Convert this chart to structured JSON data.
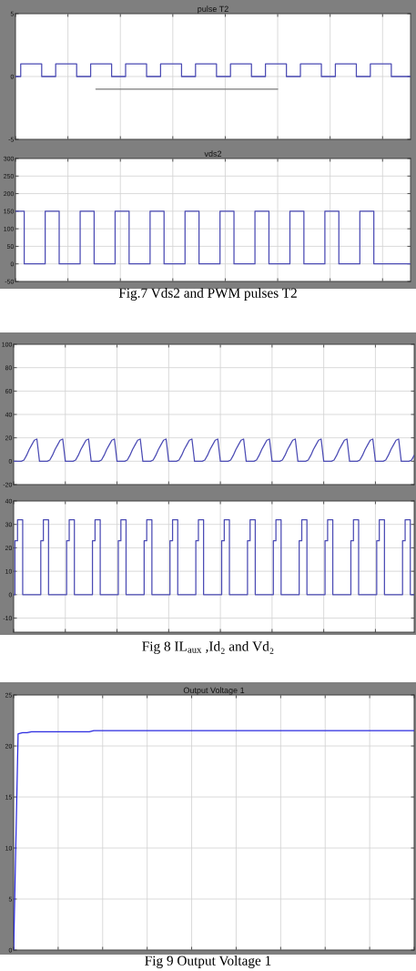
{
  "chart_data": [
    {
      "type": "step",
      "title": "pulse T2",
      "categories": [
        null,
        null,
        null,
        null,
        null,
        null,
        null,
        null,
        null,
        null,
        null,
        null,
        null,
        null,
        null,
        null,
        null,
        null,
        null,
        null,
        null,
        null,
        null,
        null,
        null,
        null,
        null,
        null,
        null,
        null,
        null,
        null,
        null,
        null,
        null,
        null,
        null,
        null,
        null,
        null,
        null,
        null,
        null,
        null,
        null,
        null,
        null,
        null,
        null,
        null,
        null,
        null,
        null,
        null,
        null,
        null,
        null,
        null,
        null,
        null,
        null,
        null,
        null,
        null,
        null,
        null,
        null,
        null,
        null,
        null,
        null,
        null,
        null,
        null,
        null,
        null,
        null,
        null,
        null,
        null,
        null,
        null,
        null,
        null,
        null,
        null,
        null,
        null,
        null,
        null,
        null,
        null,
        null,
        null,
        null,
        null,
        null,
        null,
        null,
        null,
        null,
        null,
        null,
        null,
        null,
        null,
        null,
        null,
        null,
        null,
        null,
        null,
        null,
        null
      ],
      "series": [
        {
          "color": "#4b4bb4",
          "values": [
            0,
            0,
            1,
            1,
            1,
            1,
            1,
            1,
            0,
            0,
            0,
            0,
            1,
            1,
            1,
            1,
            1,
            1,
            0,
            0,
            0,
            0,
            1,
            1,
            1,
            1,
            1,
            1,
            0,
            0,
            0,
            0,
            1,
            1,
            1,
            1,
            1,
            1,
            0,
            0,
            0,
            0,
            1,
            1,
            1,
            1,
            1,
            1,
            0,
            0,
            0,
            0,
            1,
            1,
            1,
            1,
            1,
            1,
            0,
            0,
            0,
            0,
            1,
            1,
            1,
            1,
            1,
            1,
            0,
            0,
            0,
            0,
            1,
            1,
            1,
            1,
            1,
            1,
            0,
            0,
            0,
            0,
            1,
            1,
            1,
            1,
            1,
            1,
            0,
            0,
            0,
            0,
            1,
            1,
            1,
            1,
            1,
            1,
            0,
            0,
            0,
            0,
            1,
            1,
            1,
            1,
            1,
            1,
            0,
            0,
            0,
            0,
            0,
            0
          ]
        },
        {
          "type": "line",
          "color": "#7a7a7a",
          "values": [
            null,
            null,
            null,
            null,
            null,
            null,
            null,
            null,
            null,
            null,
            null,
            null,
            null,
            null,
            null,
            null,
            null,
            null,
            null,
            null,
            null,
            null,
            null,
            -1,
            -1,
            -1,
            -1,
            -1,
            -1,
            -1,
            -1,
            -1,
            -1,
            -1,
            -1,
            -1,
            -1,
            -1,
            -1,
            -1,
            -1,
            -1,
            -1,
            -1,
            -1,
            -1,
            -1,
            -1,
            -1,
            -1,
            -1,
            -1,
            -1,
            -1,
            -1,
            -1,
            -1,
            -1,
            -1,
            -1,
            -1,
            -1,
            -1,
            -1,
            -1,
            -1,
            -1,
            -1,
            -1,
            -1,
            -1,
            -1,
            -1,
            -1,
            -1,
            -1,
            null,
            null,
            null,
            null,
            null,
            null,
            null,
            null,
            null,
            null,
            null,
            null,
            null,
            null,
            null,
            null,
            null,
            null,
            null,
            null,
            null,
            null,
            null,
            null,
            null,
            null,
            null,
            null,
            null,
            null,
            null,
            null,
            null,
            null,
            null,
            null,
            null,
            null
          ]
        }
      ],
      "ylim": [
        -5,
        5
      ],
      "yticks": [
        -5,
        0,
        5
      ],
      "grid": true,
      "tick_labels": "y"
    },
    {
      "type": "step",
      "title": "vds2",
      "categories": [
        null,
        null,
        null,
        null,
        null,
        null,
        null,
        null,
        null,
        null,
        null,
        null,
        null,
        null,
        null,
        null,
        null,
        null,
        null,
        null,
        null,
        null,
        null,
        null,
        null,
        null,
        null,
        null,
        null,
        null,
        null,
        null,
        null,
        null,
        null,
        null,
        null,
        null,
        null,
        null,
        null,
        null,
        null,
        null,
        null,
        null,
        null,
        null,
        null,
        null,
        null,
        null,
        null,
        null,
        null,
        null,
        null,
        null,
        null,
        null,
        null,
        null,
        null,
        null,
        null,
        null,
        null,
        null,
        null,
        null,
        null,
        null,
        null,
        null,
        null,
        null,
        null,
        null,
        null,
        null,
        null,
        null,
        null,
        null,
        null,
        null,
        null,
        null,
        null,
        null,
        null,
        null,
        null,
        null,
        null,
        null,
        null,
        null,
        null,
        null,
        null,
        null,
        null,
        null,
        null,
        null,
        null,
        null,
        null,
        null,
        null,
        null,
        null,
        null
      ],
      "series": [
        {
          "color": "#4b4bb4",
          "values": [
            150,
            150,
            150,
            0,
            0,
            0,
            0,
            0,
            0,
            150,
            150,
            150,
            150,
            0,
            0,
            0,
            0,
            0,
            0,
            150,
            150,
            150,
            150,
            0,
            0,
            0,
            0,
            0,
            0,
            150,
            150,
            150,
            150,
            0,
            0,
            0,
            0,
            0,
            0,
            150,
            150,
            150,
            150,
            0,
            0,
            0,
            0,
            0,
            0,
            150,
            150,
            150,
            150,
            0,
            0,
            0,
            0,
            0,
            0,
            150,
            150,
            150,
            150,
            0,
            0,
            0,
            0,
            0,
            0,
            150,
            150,
            150,
            150,
            0,
            0,
            0,
            0,
            0,
            0,
            150,
            150,
            150,
            150,
            0,
            0,
            0,
            0,
            0,
            0,
            150,
            150,
            150,
            150,
            0,
            0,
            0,
            0,
            0,
            0,
            150,
            150,
            150,
            150,
            0,
            0,
            0,
            0,
            0,
            0,
            0,
            0,
            0,
            0,
            0
          ]
        }
      ],
      "ylim": [
        -50,
        300
      ],
      "yticks": [
        -50,
        0,
        50,
        100,
        150,
        200,
        250,
        300
      ],
      "grid": true,
      "tick_labels": "y",
      "annotations": [
        "Fig.7 Vds2 and PWM pulses T2"
      ]
    },
    {
      "type": "line",
      "categories": [
        null,
        null,
        null,
        null,
        null,
        null,
        null,
        null,
        null,
        null,
        null,
        null,
        null,
        null,
        null,
        null,
        null,
        null,
        null,
        null,
        null,
        null,
        null,
        null,
        null,
        null,
        null,
        null,
        null,
        null,
        null,
        null,
        null,
        null,
        null,
        null,
        null,
        null,
        null,
        null,
        null,
        null,
        null,
        null,
        null,
        null,
        null,
        null,
        null,
        null,
        null,
        null,
        null,
        null,
        null,
        null,
        null,
        null,
        null,
        null,
        null,
        null,
        null,
        null,
        null,
        null,
        null,
        null,
        null,
        null,
        null,
        null,
        null,
        null,
        null,
        null,
        null,
        null,
        null,
        null,
        null,
        null,
        null,
        null,
        null,
        null,
        null,
        null,
        null,
        null,
        null,
        null,
        null,
        null,
        null,
        null,
        null,
        null,
        null,
        null,
        null,
        null,
        null,
        null,
        null,
        null,
        null,
        null,
        null,
        null,
        null,
        null,
        null,
        null,
        null,
        null,
        null,
        null,
        null,
        null,
        null,
        null,
        null,
        null,
        null,
        null,
        null,
        null,
        null,
        null,
        null,
        null,
        null,
        null,
        null,
        null,
        null,
        null,
        null,
        null,
        null,
        null,
        null,
        null,
        null,
        null,
        null,
        null,
        null,
        null,
        null,
        null,
        null,
        null,
        null,
        null
      ],
      "series": [
        {
          "color": "#4b4bb4",
          "values": [
            0,
            0,
            0,
            0,
            1,
            5,
            10,
            14,
            18,
            19,
            0,
            0,
            0,
            0,
            1,
            5,
            10,
            14,
            18,
            19,
            0,
            0,
            0,
            0,
            1,
            5,
            10,
            14,
            18,
            19,
            0,
            0,
            0,
            0,
            1,
            5,
            10,
            14,
            18,
            19,
            0,
            0,
            0,
            0,
            1,
            5,
            10,
            14,
            18,
            19,
            0,
            0,
            0,
            0,
            1,
            5,
            10,
            14,
            18,
            19,
            0,
            0,
            0,
            0,
            1,
            5,
            10,
            14,
            18,
            19,
            0,
            0,
            0,
            0,
            1,
            5,
            10,
            14,
            18,
            19,
            0,
            0,
            0,
            0,
            1,
            5,
            10,
            14,
            18,
            19,
            0,
            0,
            0,
            0,
            1,
            5,
            10,
            14,
            18,
            19,
            0,
            0,
            0,
            0,
            1,
            5,
            10,
            14,
            18,
            19,
            0,
            0,
            0,
            0,
            1,
            5,
            10,
            14,
            18,
            19,
            0,
            0,
            0,
            0,
            1,
            5,
            10,
            14,
            18,
            19,
            0,
            0,
            0,
            0,
            1,
            5,
            10,
            14,
            18,
            19,
            0,
            0,
            0,
            0,
            1,
            5,
            10,
            14,
            18,
            19,
            0,
            0,
            0,
            0,
            1,
            5
          ]
        }
      ],
      "ylim": [
        -20,
        100
      ],
      "yticks": [
        -20,
        0,
        20,
        40,
        60,
        80,
        100
      ],
      "grid": true,
      "tick_labels": "y"
    },
    {
      "type": "step",
      "categories": [
        null,
        null,
        null,
        null,
        null,
        null,
        null,
        null,
        null,
        null,
        null,
        null,
        null,
        null,
        null,
        null,
        null,
        null,
        null,
        null,
        null,
        null,
        null,
        null,
        null,
        null,
        null,
        null,
        null,
        null,
        null,
        null,
        null,
        null,
        null,
        null,
        null,
        null,
        null,
        null,
        null,
        null,
        null,
        null,
        null,
        null,
        null,
        null,
        null,
        null,
        null,
        null,
        null,
        null,
        null,
        null,
        null,
        null,
        null,
        null,
        null,
        null,
        null,
        null,
        null,
        null,
        null,
        null,
        null,
        null,
        null,
        null,
        null,
        null,
        null,
        null,
        null,
        null,
        null,
        null,
        null,
        null,
        null,
        null,
        null,
        null,
        null,
        null,
        null,
        null,
        null,
        null,
        null,
        null,
        null,
        null,
        null,
        null,
        null,
        null,
        null,
        null,
        null,
        null,
        null,
        null,
        null,
        null,
        null,
        null,
        null,
        null,
        null,
        null,
        null,
        null,
        null,
        null,
        null,
        null,
        null,
        null,
        null,
        null,
        null,
        null,
        null,
        null,
        null,
        null,
        null,
        null,
        null,
        null,
        null,
        null,
        null,
        null,
        null,
        null,
        null,
        null,
        null,
        null,
        null,
        null,
        null,
        null,
        null,
        null,
        null,
        null,
        null,
        null,
        null,
        null
      ],
      "series": [
        {
          "color": "#4b4bb4",
          "values": [
            0,
            23,
            32,
            32,
            0,
            0,
            0,
            0,
            0,
            0,
            0,
            23,
            32,
            32,
            0,
            0,
            0,
            0,
            0,
            0,
            0,
            23,
            32,
            32,
            0,
            0,
            0,
            0,
            0,
            0,
            0,
            23,
            32,
            32,
            0,
            0,
            0,
            0,
            0,
            0,
            0,
            23,
            32,
            32,
            0,
            0,
            0,
            0,
            0,
            0,
            0,
            23,
            32,
            32,
            0,
            0,
            0,
            0,
            0,
            0,
            0,
            23,
            32,
            32,
            0,
            0,
            0,
            0,
            0,
            0,
            0,
            23,
            32,
            32,
            0,
            0,
            0,
            0,
            0,
            0,
            0,
            23,
            32,
            32,
            0,
            0,
            0,
            0,
            0,
            0,
            0,
            23,
            32,
            32,
            0,
            0,
            0,
            0,
            0,
            0,
            0,
            23,
            32,
            32,
            0,
            0,
            0,
            0,
            0,
            0,
            0,
            23,
            32,
            32,
            0,
            0,
            0,
            0,
            0,
            0,
            0,
            23,
            32,
            32,
            0,
            0,
            0,
            0,
            0,
            0,
            0,
            23,
            32,
            32,
            0,
            0,
            0,
            0,
            0,
            0,
            0,
            23,
            32,
            32,
            0,
            0,
            0,
            0,
            0,
            0,
            0,
            23,
            32,
            32,
            0,
            0
          ]
        }
      ],
      "ylim": [
        -16,
        40
      ],
      "yticks": [
        -10,
        0,
        10,
        20,
        30,
        40
      ],
      "grid": true,
      "tick_labels": "y",
      "annotations": [
        "Fig 8 IL$_{aux}$ ,Id₂ and Vd₂"
      ]
    },
    {
      "type": "line",
      "title": "Output Voltage 1",
      "categories": [
        null,
        null,
        null,
        null,
        null,
        null,
        null,
        null,
        null,
        null,
        null,
        null,
        null,
        null,
        null,
        null,
        null,
        null,
        null,
        null,
        null,
        null,
        null,
        null,
        null,
        null,
        null,
        null,
        null,
        null,
        null,
        null,
        null,
        null,
        null,
        null,
        null,
        null,
        null,
        null,
        null,
        null,
        null,
        null,
        null,
        null,
        null,
        null,
        null,
        null,
        null,
        null,
        null,
        null,
        null,
        null,
        null,
        null,
        null,
        null,
        null,
        null,
        null,
        null,
        null,
        null,
        null,
        null,
        null,
        null,
        null,
        null,
        null,
        null,
        null,
        null,
        null,
        null,
        null,
        null,
        null,
        null,
        null,
        null,
        null,
        null,
        null,
        null,
        null,
        null,
        null
      ],
      "series": [
        {
          "color": "#2b2be0",
          "values": [
            0,
            21.2,
            21.3,
            21.3,
            21.4,
            21.4,
            21.4,
            21.4,
            21.4,
            21.4,
            21.4,
            21.4,
            21.4,
            21.4,
            21.4,
            21.4,
            21.4,
            21.4,
            21.5,
            21.5,
            21.5,
            21.5,
            21.5,
            21.5,
            21.5,
            21.5,
            21.5,
            21.5,
            21.5,
            21.5,
            21.5,
            21.5,
            21.5,
            21.5,
            21.5,
            21.5,
            21.5,
            21.5,
            21.5,
            21.5,
            21.5,
            21.5,
            21.5,
            21.5,
            21.5,
            21.5,
            21.5,
            21.5,
            21.5,
            21.5,
            21.5,
            21.5,
            21.5,
            21.5,
            21.5,
            21.5,
            21.5,
            21.5,
            21.5,
            21.5,
            21.5,
            21.5,
            21.5,
            21.5,
            21.5,
            21.5,
            21.5,
            21.5,
            21.5,
            21.5,
            21.5,
            21.5,
            21.5,
            21.5,
            21.5,
            21.5,
            21.5,
            21.5,
            21.5,
            21.5,
            21.5,
            21.5,
            21.5,
            21.5,
            21.5,
            21.5,
            21.5,
            21.5,
            21.5,
            21.5,
            21.5
          ]
        }
      ],
      "ylim": [
        0,
        25
      ],
      "yticks": [
        0,
        5,
        10,
        15,
        20,
        25
      ],
      "grid": true,
      "tick_labels": "y",
      "annotations": [
        "Fig 9 Output Voltage 1"
      ]
    }
  ]
}
